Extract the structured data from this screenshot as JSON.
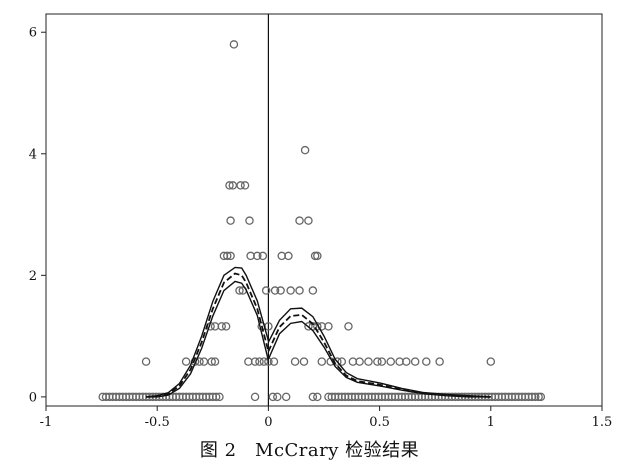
{
  "caption": "图 2　McCrary 检验结果",
  "chart_data": {
    "type": "scatter",
    "title": "",
    "xlabel": "",
    "ylabel": "",
    "xlim": [
      -1,
      1.5
    ],
    "ylim": [
      -0.15,
      6.3
    ],
    "xticks": [
      -1,
      -0.5,
      0,
      0.5,
      1,
      1.5
    ],
    "xtick_labels": [
      "-1",
      "-0.5",
      "0",
      "0.5",
      "1",
      "1.5"
    ],
    "yticks": [
      0,
      2,
      4,
      6
    ],
    "ytick_labels": [
      "0",
      "2",
      "4",
      "6"
    ],
    "grid": false,
    "cutoff": 0,
    "colors": {
      "points": "#666666",
      "curve": "#111111"
    },
    "points": [
      [
        -0.745,
        0
      ],
      [
        -0.73,
        0
      ],
      [
        -0.715,
        0
      ],
      [
        -0.7,
        0
      ],
      [
        -0.685,
        0
      ],
      [
        -0.67,
        0
      ],
      [
        -0.655,
        0
      ],
      [
        -0.64,
        0
      ],
      [
        -0.625,
        0
      ],
      [
        -0.61,
        0
      ],
      [
        -0.595,
        0
      ],
      [
        -0.58,
        0
      ],
      [
        -0.565,
        0
      ],
      [
        -0.55,
        0
      ],
      [
        -0.535,
        0
      ],
      [
        -0.52,
        0
      ],
      [
        -0.505,
        0
      ],
      [
        -0.49,
        0
      ],
      [
        -0.475,
        0
      ],
      [
        -0.46,
        0
      ],
      [
        -0.445,
        0
      ],
      [
        -0.43,
        0
      ],
      [
        -0.415,
        0
      ],
      [
        -0.4,
        0
      ],
      [
        -0.385,
        0
      ],
      [
        -0.37,
        0
      ],
      [
        -0.355,
        0
      ],
      [
        -0.34,
        0
      ],
      [
        -0.325,
        0
      ],
      [
        -0.31,
        0
      ],
      [
        -0.295,
        0
      ],
      [
        -0.28,
        0
      ],
      [
        -0.265,
        0
      ],
      [
        -0.25,
        0
      ],
      [
        -0.235,
        0
      ],
      [
        -0.22,
        0
      ],
      [
        -0.06,
        0
      ],
      [
        0.02,
        0
      ],
      [
        0.04,
        0
      ],
      [
        0.08,
        0
      ],
      [
        0.2,
        0
      ],
      [
        0.22,
        0
      ],
      [
        0.27,
        0
      ],
      [
        0.285,
        0
      ],
      [
        0.3,
        0
      ],
      [
        0.315,
        0
      ],
      [
        0.33,
        0
      ],
      [
        0.345,
        0
      ],
      [
        0.36,
        0
      ],
      [
        0.375,
        0
      ],
      [
        0.39,
        0
      ],
      [
        0.405,
        0
      ],
      [
        0.42,
        0
      ],
      [
        0.435,
        0
      ],
      [
        0.45,
        0
      ],
      [
        0.465,
        0
      ],
      [
        0.48,
        0
      ],
      [
        0.495,
        0
      ],
      [
        0.51,
        0
      ],
      [
        0.525,
        0
      ],
      [
        0.54,
        0
      ],
      [
        0.555,
        0
      ],
      [
        0.57,
        0
      ],
      [
        0.585,
        0
      ],
      [
        0.6,
        0
      ],
      [
        0.615,
        0
      ],
      [
        0.63,
        0
      ],
      [
        0.645,
        0
      ],
      [
        0.66,
        0
      ],
      [
        0.675,
        0
      ],
      [
        0.69,
        0
      ],
      [
        0.705,
        0
      ],
      [
        0.72,
        0
      ],
      [
        0.735,
        0
      ],
      [
        0.75,
        0
      ],
      [
        0.765,
        0
      ],
      [
        0.78,
        0
      ],
      [
        0.795,
        0
      ],
      [
        0.81,
        0
      ],
      [
        0.825,
        0
      ],
      [
        0.84,
        0
      ],
      [
        0.855,
        0
      ],
      [
        0.87,
        0
      ],
      [
        0.885,
        0
      ],
      [
        0.9,
        0
      ],
      [
        0.915,
        0
      ],
      [
        0.93,
        0
      ],
      [
        0.945,
        0
      ],
      [
        0.96,
        0
      ],
      [
        0.975,
        0
      ],
      [
        0.99,
        0
      ],
      [
        1.005,
        0
      ],
      [
        1.02,
        0
      ],
      [
        1.035,
        0
      ],
      [
        1.05,
        0
      ],
      [
        1.065,
        0
      ],
      [
        1.08,
        0
      ],
      [
        1.095,
        0
      ],
      [
        1.11,
        0
      ],
      [
        1.125,
        0
      ],
      [
        1.14,
        0
      ],
      [
        1.155,
        0
      ],
      [
        1.17,
        0
      ],
      [
        1.185,
        0
      ],
      [
        1.2,
        0
      ],
      [
        1.215,
        0
      ],
      [
        1.225,
        0
      ],
      [
        -0.55,
        0.58
      ],
      [
        -0.37,
        0.58
      ],
      [
        -0.33,
        0.58
      ],
      [
        -0.31,
        0.58
      ],
      [
        -0.29,
        0.58
      ],
      [
        -0.255,
        0.58
      ],
      [
        -0.24,
        0.58
      ],
      [
        -0.09,
        0.58
      ],
      [
        -0.06,
        0.58
      ],
      [
        -0.04,
        0.58
      ],
      [
        -0.02,
        0.58
      ],
      [
        0.0,
        0.58
      ],
      [
        0.025,
        0.58
      ],
      [
        0.12,
        0.58
      ],
      [
        0.16,
        0.58
      ],
      [
        0.24,
        0.58
      ],
      [
        0.28,
        0.58
      ],
      [
        0.31,
        0.58
      ],
      [
        0.33,
        0.58
      ],
      [
        0.38,
        0.58
      ],
      [
        0.41,
        0.58
      ],
      [
        0.45,
        0.58
      ],
      [
        0.49,
        0.58
      ],
      [
        0.51,
        0.58
      ],
      [
        0.55,
        0.58
      ],
      [
        0.59,
        0.58
      ],
      [
        0.62,
        0.58
      ],
      [
        0.66,
        0.58
      ],
      [
        0.71,
        0.58
      ],
      [
        0.77,
        0.58
      ],
      [
        1.0,
        0.58
      ],
      [
        -0.26,
        1.16
      ],
      [
        -0.24,
        1.16
      ],
      [
        -0.21,
        1.16
      ],
      [
        -0.19,
        1.16
      ],
      [
        -0.03,
        1.16
      ],
      [
        0.0,
        1.16
      ],
      [
        0.2,
        1.16
      ],
      [
        0.24,
        1.16
      ],
      [
        0.22,
        1.16
      ],
      [
        0.18,
        1.16
      ],
      [
        0.27,
        1.16
      ],
      [
        0.36,
        1.16
      ],
      [
        -0.13,
        1.75
      ],
      [
        -0.115,
        1.75
      ],
      [
        -0.01,
        1.75
      ],
      [
        0.03,
        1.75
      ],
      [
        0.055,
        1.75
      ],
      [
        0.1,
        1.75
      ],
      [
        0.14,
        1.75
      ],
      [
        0.2,
        1.75
      ],
      [
        -0.2,
        2.32
      ],
      [
        -0.185,
        2.32
      ],
      [
        -0.17,
        2.32
      ],
      [
        -0.08,
        2.32
      ],
      [
        -0.05,
        2.32
      ],
      [
        -0.025,
        2.32
      ],
      [
        0.06,
        2.32
      ],
      [
        0.09,
        2.32
      ],
      [
        0.21,
        2.32
      ],
      [
        0.22,
        2.32
      ],
      [
        -0.17,
        2.9
      ],
      [
        -0.085,
        2.9
      ],
      [
        0.14,
        2.9
      ],
      [
        0.18,
        2.9
      ],
      [
        -0.175,
        3.48
      ],
      [
        -0.16,
        3.48
      ],
      [
        -0.125,
        3.48
      ],
      [
        -0.105,
        3.48
      ],
      [
        0.165,
        4.06
      ],
      [
        -0.155,
        5.8
      ]
    ],
    "curves": {
      "left_x": [
        -0.55,
        -0.5,
        -0.45,
        -0.4,
        -0.35,
        -0.3,
        -0.25,
        -0.2,
        -0.15,
        -0.12,
        -0.1,
        -0.05,
        0.0
      ],
      "left_fit": [
        0.0,
        0.01,
        0.05,
        0.18,
        0.45,
        0.9,
        1.45,
        1.88,
        2.03,
        2.0,
        1.88,
        1.45,
        0.75
      ],
      "left_ci_low": [
        0.0,
        0.0,
        0.03,
        0.14,
        0.38,
        0.8,
        1.33,
        1.75,
        1.9,
        1.87,
        1.76,
        1.34,
        0.6
      ],
      "left_ci_high": [
        0.0,
        0.02,
        0.07,
        0.22,
        0.52,
        1.0,
        1.57,
        2.0,
        2.13,
        2.12,
        2.0,
        1.58,
        0.92
      ],
      "right_x": [
        0.0,
        0.05,
        0.1,
        0.15,
        0.2,
        0.25,
        0.3,
        0.35,
        0.4,
        0.5,
        0.6,
        0.7,
        0.8,
        0.9,
        1.0
      ],
      "right_fit": [
        0.75,
        1.15,
        1.33,
        1.35,
        1.2,
        0.9,
        0.55,
        0.35,
        0.26,
        0.2,
        0.12,
        0.06,
        0.03,
        0.01,
        0.0
      ],
      "right_ci_low": [
        0.62,
        1.04,
        1.21,
        1.24,
        1.09,
        0.82,
        0.5,
        0.32,
        0.24,
        0.18,
        0.11,
        0.05,
        0.02,
        0.0,
        0.0
      ],
      "right_ci_high": [
        0.9,
        1.26,
        1.45,
        1.46,
        1.32,
        1.0,
        0.62,
        0.4,
        0.3,
        0.23,
        0.14,
        0.07,
        0.04,
        0.02,
        0.0
      ]
    }
  }
}
